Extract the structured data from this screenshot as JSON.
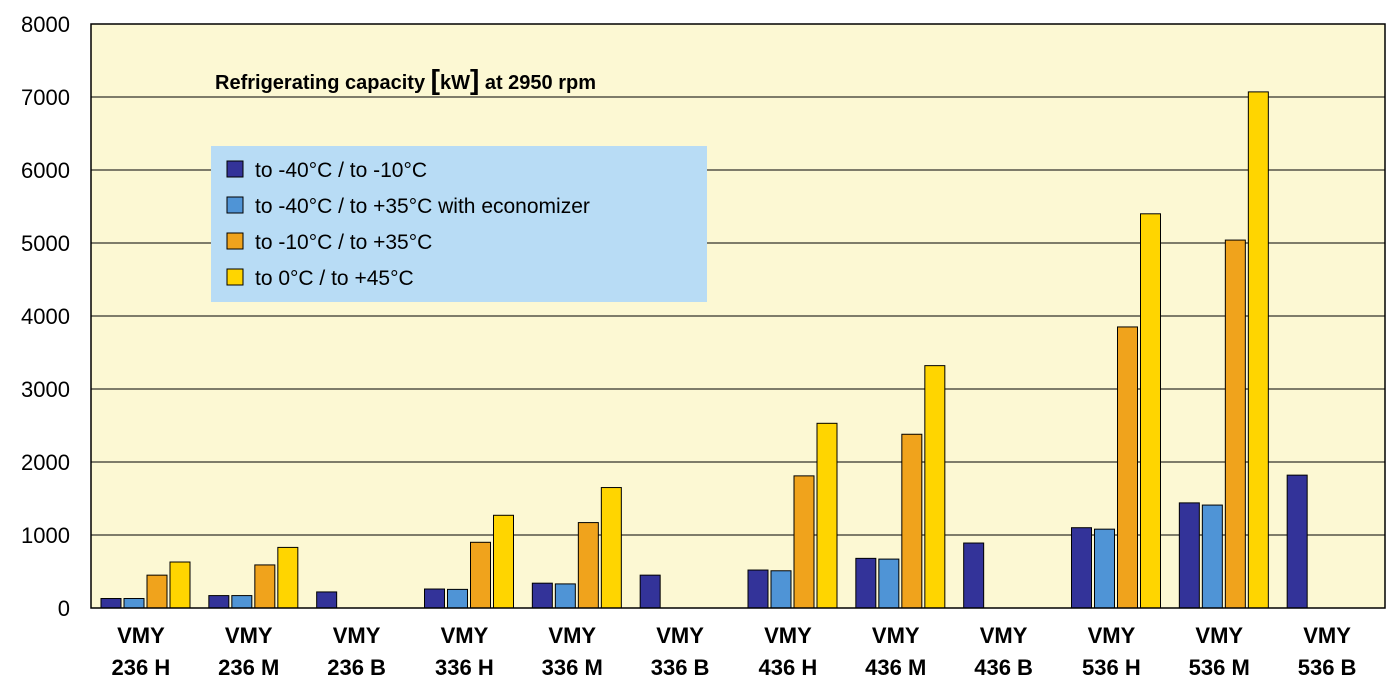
{
  "chart_data": {
    "type": "bar",
    "title": "Refrigerating capacity [kW] at 2950 rpm",
    "ylim": [
      0,
      8000
    ],
    "yticks": [
      "0",
      "1000",
      "2000",
      "3000",
      "4000",
      "5000",
      "6000",
      "7000",
      "8000"
    ],
    "grid": true,
    "legend_position": "upper-left",
    "categories": [
      [
        "VMY",
        "236 H"
      ],
      [
        "VMY",
        "236 M"
      ],
      [
        "VMY",
        "236 B"
      ],
      [
        "VMY",
        "336 H"
      ],
      [
        "VMY",
        "336 M"
      ],
      [
        "VMY",
        "336 B"
      ],
      [
        "VMY",
        "436 H"
      ],
      [
        "VMY",
        "436 M"
      ],
      [
        "VMY",
        "436 B"
      ],
      [
        "VMY",
        "536 H"
      ],
      [
        "VMY",
        "536 M"
      ],
      [
        "VMY",
        "536 B"
      ]
    ],
    "series": [
      {
        "name": "to -40°C / to -10°C",
        "color": "#333399",
        "values": [
          130,
          170,
          220,
          260,
          340,
          450,
          520,
          680,
          890,
          1100,
          1440,
          1820
        ]
      },
      {
        "name": "to -40°C / to +35°C with economizer",
        "color": "#4f94d6",
        "values": [
          130,
          170,
          null,
          255,
          330,
          null,
          510,
          670,
          null,
          1080,
          1410,
          null
        ]
      },
      {
        "name": "to -10°C / to +35°C",
        "color": "#f0a31c",
        "values": [
          450,
          590,
          null,
          900,
          1170,
          null,
          1810,
          2380,
          null,
          3850,
          5040,
          null
        ]
      },
      {
        "name": "to 0°C / to +45°C",
        "color": "#ffd500",
        "values": [
          630,
          830,
          null,
          1270,
          1650,
          null,
          2530,
          3320,
          null,
          5400,
          7070,
          null
        ]
      }
    ],
    "colors": {
      "plot_background": "#fcf8d3",
      "legend_background": "#b8dcf5"
    }
  }
}
